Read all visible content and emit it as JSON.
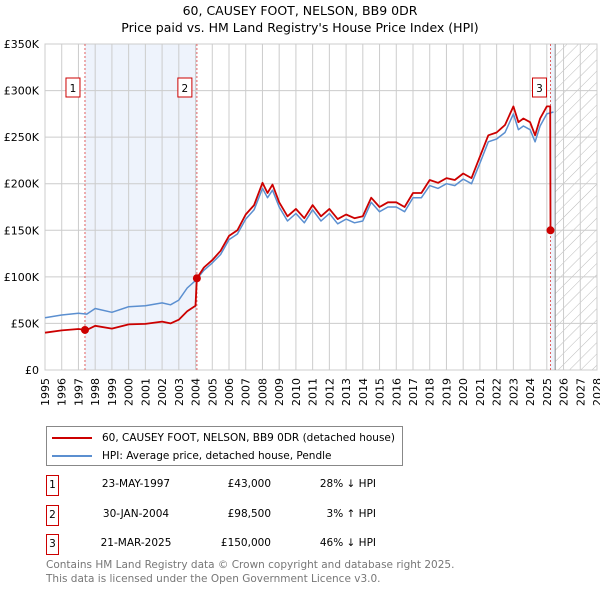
{
  "title": "60, CAUSEY FOOT, NELSON, BB9 0DR",
  "subtitle": "Price paid vs. HM Land Registry's House Price Index (HPI)",
  "chart_data": {
    "type": "line",
    "title": "60, CAUSEY FOOT, NELSON, BB9 0DR — Price paid vs. HM Land Registry's House Price Index (HPI)",
    "xlabel": "",
    "ylabel": "",
    "xlim": [
      1995,
      2028
    ],
    "ylim": [
      0,
      350000
    ],
    "x_ticks": [
      "1995",
      "1996",
      "1997",
      "1998",
      "1999",
      "2000",
      "2001",
      "2002",
      "2003",
      "2004",
      "2005",
      "2006",
      "2007",
      "2008",
      "2009",
      "2010",
      "2011",
      "2012",
      "2013",
      "2014",
      "2015",
      "2016",
      "2017",
      "2018",
      "2019",
      "2020",
      "2021",
      "2022",
      "2023",
      "2024",
      "2025",
      "2026",
      "2027",
      "2028"
    ],
    "y_ticks": [
      {
        "v": 0,
        "label": "£0"
      },
      {
        "v": 50000,
        "label": "£50K"
      },
      {
        "v": 100000,
        "label": "£100K"
      },
      {
        "v": 150000,
        "label": "£150K"
      },
      {
        "v": 200000,
        "label": "£200K"
      },
      {
        "v": 250000,
        "label": "£250K"
      },
      {
        "v": 300000,
        "label": "£300K"
      },
      {
        "v": 350000,
        "label": "£350K"
      }
    ],
    "grid": true,
    "shaded_ranges": [
      [
        1997.39,
        2004.08
      ],
      [
        2025.22,
        2025.5
      ]
    ],
    "forecast_hatch_from": 2025.5,
    "series": [
      {
        "name": "60, CAUSEY FOOT, NELSON, BB9 0DR (detached house)",
        "color": "#cc0000",
        "x": [
          1995,
          1996,
          1997,
          1997.39,
          1997.5,
          1998,
          1999,
          2000,
          2001,
          2002,
          2002.5,
          2003,
          2003.5,
          2004,
          2004.08,
          2004.5,
          2005,
          2005.5,
          2006,
          2006.5,
          2007,
          2007.5,
          2008,
          2008.3,
          2008.6,
          2009,
          2009.5,
          2010,
          2010.5,
          2011,
          2011.5,
          2012,
          2012.5,
          2013,
          2013.5,
          2014,
          2014.5,
          2015,
          2015.5,
          2016,
          2016.5,
          2017,
          2017.5,
          2018,
          2018.5,
          2019,
          2019.5,
          2020,
          2020.5,
          2021,
          2021.5,
          2022,
          2022.5,
          2023,
          2023.3,
          2023.6,
          2024,
          2024.3,
          2024.6,
          2025,
          2025.2,
          2025.22
        ],
        "values": [
          40000,
          42500,
          44000,
          43000,
          43000,
          47500,
          44500,
          49000,
          49500,
          52000,
          50000,
          54000,
          63000,
          69000,
          98500,
          110000,
          118000,
          128000,
          144000,
          150000,
          167000,
          177000,
          201000,
          190000,
          199000,
          180000,
          165000,
          173000,
          163000,
          177000,
          165000,
          173000,
          162000,
          167000,
          163000,
          165000,
          185000,
          175000,
          180000,
          180000,
          175000,
          190000,
          190000,
          204000,
          201000,
          206000,
          204000,
          211000,
          206000,
          229000,
          252000,
          255000,
          263000,
          283000,
          266000,
          270000,
          266000,
          252000,
          270000,
          283000,
          283000,
          150000
        ]
      },
      {
        "name": "HPI: Average price, detached house, Pendle",
        "color": "#5b8fd0",
        "x": [
          1995,
          1996,
          1997,
          1997.5,
          1998,
          1999,
          2000,
          2001,
          2002,
          2002.5,
          2003,
          2003.5,
          2004,
          2004.5,
          2005,
          2005.5,
          2006,
          2006.5,
          2007,
          2007.5,
          2008,
          2008.3,
          2008.6,
          2009,
          2009.5,
          2010,
          2010.5,
          2011,
          2011.5,
          2012,
          2012.5,
          2013,
          2013.5,
          2014,
          2014.5,
          2015,
          2015.5,
          2016,
          2016.5,
          2017,
          2017.5,
          2018,
          2018.5,
          2019,
          2019.5,
          2020,
          2020.5,
          2021,
          2021.5,
          2022,
          2022.5,
          2023,
          2023.3,
          2023.6,
          2024,
          2024.3,
          2024.6,
          2025,
          2025.4
        ],
        "values": [
          56000,
          59000,
          61000,
          60000,
          66000,
          62000,
          68000,
          69000,
          72000,
          70000,
          75000,
          88000,
          96000,
          107000,
          115000,
          124000,
          140000,
          146000,
          162000,
          172000,
          195000,
          185000,
          193000,
          175000,
          160000,
          168000,
          158000,
          172000,
          160000,
          168000,
          157000,
          162000,
          158000,
          160000,
          180000,
          170000,
          175000,
          175000,
          170000,
          185000,
          185000,
          198000,
          195000,
          200000,
          198000,
          205000,
          200000,
          222000,
          245000,
          248000,
          255000,
          275000,
          258000,
          262000,
          258000,
          245000,
          262000,
          275000,
          277000
        ]
      }
    ],
    "sales": [
      {
        "id": "1",
        "x": 1997.39,
        "value": 43000
      },
      {
        "id": "2",
        "x": 2004.08,
        "value": 98500
      },
      {
        "id": "3",
        "x": 2025.22,
        "value": 150000
      }
    ],
    "legend_position": "below"
  },
  "legend": [
    {
      "label": "60, CAUSEY FOOT, NELSON, BB9 0DR (detached house)",
      "color": "#cc0000"
    },
    {
      "label": "HPI: Average price, detached house, Pendle",
      "color": "#5b8fd0"
    }
  ],
  "table": [
    {
      "id": "1",
      "date": "23-MAY-1997",
      "price": "£43,000",
      "hpi": "28% ↓ HPI"
    },
    {
      "id": "2",
      "date": "30-JAN-2004",
      "price": "£98,500",
      "hpi": "3% ↑ HPI"
    },
    {
      "id": "3",
      "date": "21-MAR-2025",
      "price": "£150,000",
      "hpi": "46% ↓ HPI"
    }
  ],
  "footer": [
    "Contains HM Land Registry data © Crown copyright and database right 2025.",
    "This data is licensed under the Open Government Licence v3.0."
  ]
}
